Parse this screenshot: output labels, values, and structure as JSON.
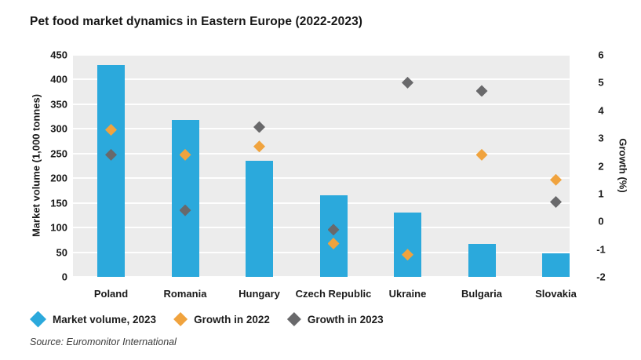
{
  "page": {
    "title": "Pet food market dynamics in Eastern Europe (2022-2023)",
    "source": "Source: Euromonitor International"
  },
  "colors": {
    "bar_blue": "#2BA9DC",
    "growth_2022_orange": "#F0A33E",
    "growth_2023_gray": "#69696B",
    "plot_background": "#ECECEC",
    "gridline": "#FFFFFF",
    "text": "#1B1B1B"
  },
  "chart_data": {
    "type": "bar",
    "subtype": "combo-bar-and-diamond-scatter",
    "title": "Pet food market dynamics in Eastern Europe (2022-2023)",
    "categories": [
      "Poland",
      "Romania",
      "Hungary",
      "Czech Republic",
      "Ukraine",
      "Bulgaria",
      "Slovakia"
    ],
    "series": [
      {
        "name": "Market volume, 2023",
        "type": "bar",
        "axis": "left",
        "marker": "bar",
        "color": "#2BA9DC",
        "values": [
          430,
          318,
          235,
          166,
          130,
          67,
          47
        ]
      },
      {
        "name": "Growth in 2022",
        "type": "scatter",
        "axis": "right",
        "marker": "diamond",
        "color": "#F0A33E",
        "values": [
          3.3,
          2.4,
          2.7,
          -0.8,
          -1.2,
          2.4,
          1.5
        ]
      },
      {
        "name": "Growth in 2023",
        "type": "scatter",
        "axis": "right",
        "marker": "diamond",
        "color": "#69696B",
        "values": [
          2.4,
          0.4,
          3.4,
          -0.3,
          5.0,
          4.7,
          0.7
        ]
      }
    ],
    "left_axis": {
      "label": "Market volume (1,000 tonnes)",
      "min": 0,
      "max": 450,
      "step": 50,
      "ticks": [
        "450",
        "400",
        "350",
        "300",
        "250",
        "200",
        "150",
        "100",
        "50",
        "0"
      ]
    },
    "right_axis": {
      "label": "Growth (%)",
      "min": -2,
      "max": 6,
      "step": 1,
      "ticks": [
        "6",
        "5",
        "4",
        "3",
        "2",
        "1",
        "0",
        "-1",
        "-2"
      ]
    },
    "grid": "horizontal white gridlines on light-gray plot background",
    "legend_position": "bottom-left"
  },
  "legend": {
    "items": [
      {
        "label": "Market volume, 2023",
        "color": "#2BA9DC",
        "shape": "diamond"
      },
      {
        "label": "Growth in 2022",
        "color": "#F0A33E",
        "shape": "diamond"
      },
      {
        "label": "Growth in 2023",
        "color": "#69696B",
        "shape": "diamond"
      }
    ]
  }
}
